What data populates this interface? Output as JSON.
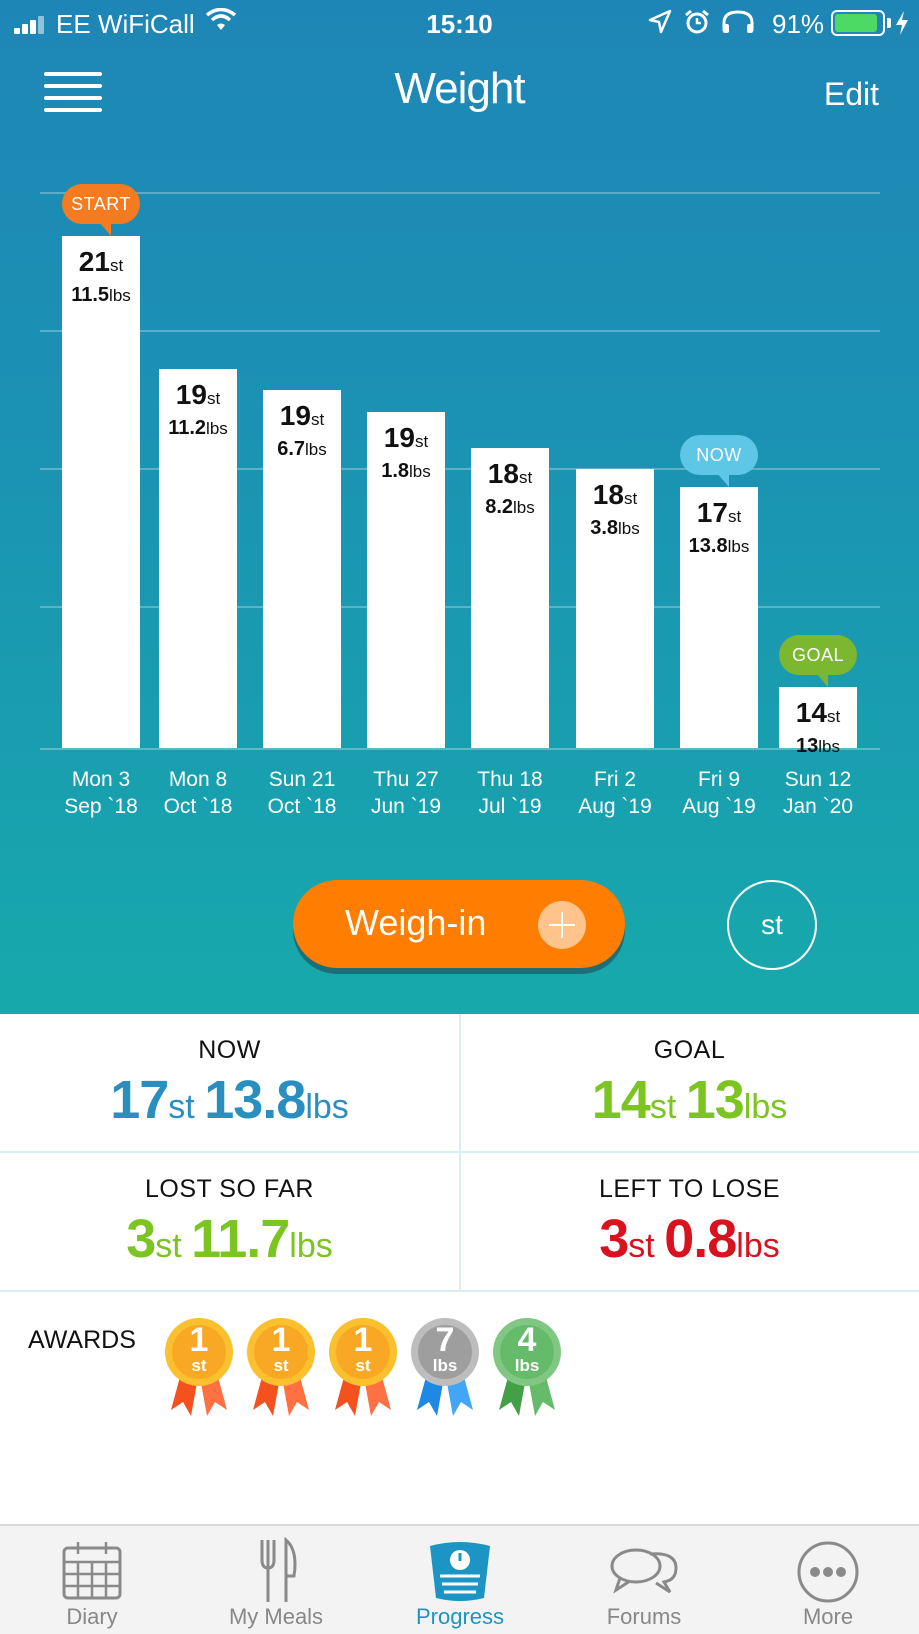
{
  "status_bar": {
    "carrier": "EE WiFiCall",
    "time": "15:10",
    "battery_percent": "91%",
    "battery_level": 0.91
  },
  "nav": {
    "title": "Weight",
    "edit_label": "Edit",
    "menu_icon": "hamburger-menu-icon"
  },
  "chart_data": {
    "type": "bar",
    "ylim": [
      14.0,
      22.5
    ],
    "unit": "stones",
    "categories": [
      [
        "Mon 3",
        "Sep `18"
      ],
      [
        "Mon 8",
        "Oct `18"
      ],
      [
        "Sun 21",
        "Oct `18"
      ],
      [
        "Thu 27",
        "Jun `19"
      ],
      [
        "Thu 18",
        "Jul `19"
      ],
      [
        "Fri 2",
        "Aug `19"
      ],
      [
        "Fri 9",
        "Aug `19"
      ],
      [
        "Sun 12",
        "Jan `20"
      ]
    ],
    "values": [
      21.82,
      19.8,
      19.48,
      19.13,
      18.59,
      18.27,
      17.99,
      14.93
    ],
    "labels": [
      {
        "st": "21",
        "lbs": "11.5"
      },
      {
        "st": "19",
        "lbs": "11.2"
      },
      {
        "st": "19",
        "lbs": "6.7"
      },
      {
        "st": "19",
        "lbs": "1.8"
      },
      {
        "st": "18",
        "lbs": "8.2"
      },
      {
        "st": "18",
        "lbs": "3.8"
      },
      {
        "st": "17",
        "lbs": "13.8"
      },
      {
        "st": "14",
        "lbs": "13"
      }
    ],
    "st_unit": "st",
    "lbs_unit": "lbs",
    "markers": [
      {
        "index": 0,
        "text": "START",
        "color": "#f47b20"
      },
      {
        "index": 6,
        "text": "NOW",
        "color": "#5ec6e6"
      },
      {
        "index": 7,
        "text": "GOAL",
        "color": "#7cb82f"
      }
    ],
    "grid": true
  },
  "actions": {
    "weighin_label": "Weigh-in",
    "unit_label": "st"
  },
  "stats": {
    "now": {
      "label": "NOW",
      "st": "17",
      "lbs": "13.8",
      "color": "#2a8fbf"
    },
    "goal": {
      "label": "GOAL",
      "st": "14",
      "lbs": "13",
      "color": "#7cc422"
    },
    "lost": {
      "label": "LOST SO FAR",
      "st": "3",
      "lbs": "11.7",
      "color": "#7cc422"
    },
    "left": {
      "label": "LEFT TO LOSE",
      "st": "3",
      "lbs": "0.8",
      "color": "#d9121f"
    },
    "st_unit": "st",
    "lbs_unit": "lbs"
  },
  "awards": {
    "label": "AWARDS",
    "medals": [
      {
        "text": "1",
        "unit": "st",
        "kind": "gold"
      },
      {
        "text": "1",
        "unit": "st",
        "kind": "gold"
      },
      {
        "text": "1",
        "unit": "st",
        "kind": "gold"
      },
      {
        "text": "7",
        "unit": "lbs",
        "kind": "silver"
      },
      {
        "text": "4",
        "unit": "lbs",
        "kind": "green"
      }
    ]
  },
  "tabs": [
    {
      "label": "Diary",
      "icon": "calendar-icon",
      "active": false
    },
    {
      "label": "My Meals",
      "icon": "fork-knife-icon",
      "active": false
    },
    {
      "label": "Progress",
      "icon": "scale-icon",
      "active": true
    },
    {
      "label": "Forums",
      "icon": "chat-bubbles-icon",
      "active": false
    },
    {
      "label": "More",
      "icon": "more-dots-icon",
      "active": false
    }
  ]
}
